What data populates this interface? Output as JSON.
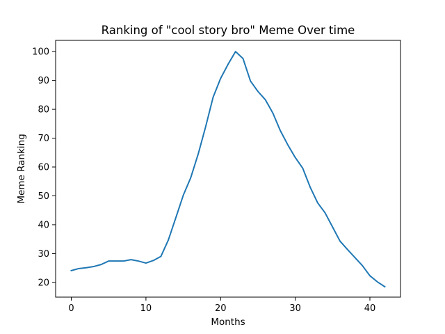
{
  "chart_data": {
    "type": "line",
    "title": "Ranking of \"cool story bro\" Meme Over time",
    "xlabel": "Months",
    "ylabel": "Meme Ranking",
    "xlim": [
      -2.1,
      44.1
    ],
    "ylim": [
      14.9,
      103.9
    ],
    "xticks": [
      0,
      10,
      20,
      30,
      40
    ],
    "yticks": [
      20,
      30,
      40,
      50,
      60,
      70,
      80,
      90,
      100
    ],
    "grid": false,
    "legend": "none",
    "line_color": "#1f77b4",
    "series": [
      {
        "x": [
          0,
          1,
          2,
          3,
          4,
          5,
          6,
          7,
          8,
          9,
          10,
          11,
          12,
          13,
          14,
          15,
          16,
          17,
          18,
          19,
          20,
          21,
          22,
          23,
          24,
          25,
          26,
          27,
          28,
          29,
          30,
          31,
          32,
          33,
          34,
          35,
          36,
          37,
          38,
          39,
          40,
          41,
          42
        ],
        "values": [
          24.1,
          24.8,
          25.1,
          25.5,
          26.2,
          27.4,
          27.4,
          27.4,
          27.9,
          27.4,
          26.7,
          27.6,
          29.0,
          34.7,
          42.4,
          50.2,
          56.3,
          64.5,
          74.0,
          84.2,
          90.7,
          95.6,
          100.0,
          97.6,
          89.8,
          86.2,
          83.3,
          78.7,
          72.6,
          67.7,
          63.3,
          59.6,
          53.0,
          47.6,
          44.1,
          39.2,
          34.3,
          31.4,
          28.6,
          25.8,
          22.3,
          20.2,
          18.5
        ]
      }
    ]
  }
}
